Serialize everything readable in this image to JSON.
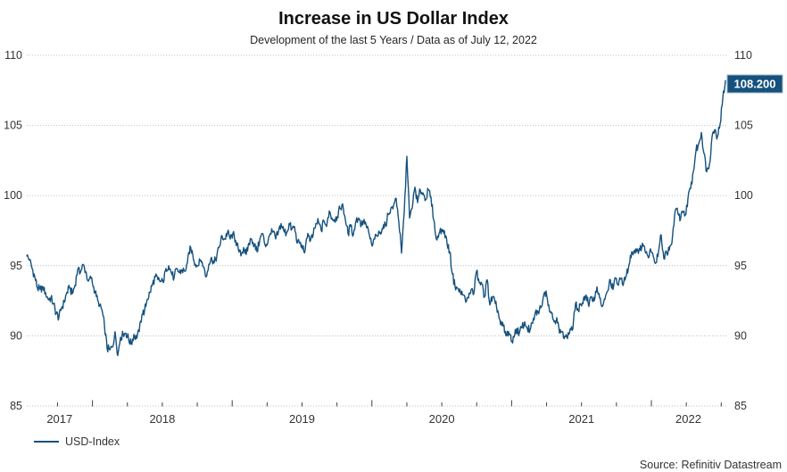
{
  "title": "Increase in US Dollar Index",
  "subtitle": "Development of the last 5 Years / Data as of July 12, 2022",
  "source": "Source: Refinitiv Datastream",
  "legend": {
    "usd_index_label": "USD-Index"
  },
  "end_label": "108.200",
  "colors": {
    "line": "#15517D",
    "end_label_bg": "#15517D",
    "end_label_border": "#9FB3C8",
    "end_label_text": "#FFFFFF",
    "grid": "#BFBFBF",
    "tick": "#404040",
    "axis_text": "#333333",
    "title_text": "#111111",
    "subtitle_text": "#262626",
    "source_text": "#333333",
    "background": "#FFFFFF"
  },
  "chart_data": {
    "type": "line",
    "title": "Increase in US Dollar Index",
    "subtitle": "Development of the last 5 Years / Data as of July 12, 2022",
    "source": "Source: Refinitiv Datastream",
    "ylim": [
      85,
      110
    ],
    "yticks": [
      85,
      90,
      95,
      100,
      105,
      110
    ],
    "y_labels_both_sides": true,
    "x_years": [
      2017,
      2018,
      2019,
      2020,
      2021,
      2022
    ],
    "x_start": 2017.53,
    "x_end": 2022.53,
    "x_minor_tick_interval": 0.25,
    "grid": "horizontal-dotted",
    "legend_position": "bottom-left",
    "annotation": {
      "text": "108.200",
      "value": 108.2,
      "at": "last-point"
    },
    "series": [
      {
        "name": "USD-Index",
        "interval": "weekly",
        "values": [
          95.7,
          95.4,
          94.8,
          94.2,
          93.4,
          93.3,
          93.5,
          93.1,
          92.6,
          92.7,
          92.3,
          91.6,
          91.3,
          92.0,
          92.4,
          93.1,
          93.4,
          93.0,
          93.6,
          94.7,
          94.5,
          95.1,
          94.6,
          93.9,
          94.1,
          93.5,
          92.8,
          92.1,
          91.9,
          90.8,
          89.1,
          89.0,
          89.2,
          90.3,
          88.6,
          89.9,
          90.1,
          90.2,
          89.8,
          89.4,
          90.1,
          89.8,
          90.3,
          91.5,
          91.8,
          92.6,
          93.1,
          93.7,
          94.2,
          94.0,
          93.9,
          93.8,
          94.8,
          95.0,
          94.5,
          94.1,
          94.8,
          94.5,
          94.7,
          94.6,
          95.2,
          96.4,
          95.8,
          95.1,
          95.0,
          95.4,
          94.9,
          94.2,
          95.1,
          95.6,
          95.2,
          95.7,
          96.4,
          97.1,
          96.9,
          97.4,
          96.9,
          97.3,
          96.8,
          96.2,
          95.7,
          96.3,
          95.8,
          96.6,
          96.9,
          96.5,
          96.0,
          96.8,
          97.3,
          96.5,
          96.6,
          97.3,
          97.4,
          96.9,
          97.4,
          98.0,
          97.5,
          97.3,
          98.0,
          97.6,
          97.8,
          96.6,
          96.6,
          96.2,
          96.1,
          97.3,
          96.8,
          97.2,
          98.0,
          98.1,
          97.5,
          98.2,
          97.8,
          98.9,
          98.4,
          98.3,
          98.5,
          99.1,
          99.4,
          98.3,
          97.3,
          97.8,
          97.2,
          98.2,
          98.4,
          97.9,
          98.3,
          97.7,
          97.2,
          96.4,
          96.9,
          97.1,
          97.4,
          97.6,
          97.9,
          98.7,
          99.1,
          99.3,
          99.8,
          98.1,
          95.9,
          98.8,
          102.8,
          98.4,
          99.1,
          100.6,
          99.5,
          100.4,
          100.2,
          99.7,
          100.4,
          99.9,
          98.3,
          96.9,
          97.3,
          97.6,
          97.5,
          96.6,
          96.0,
          94.4,
          93.5,
          93.4,
          93.1,
          92.9,
          92.4,
          92.7,
          93.3,
          93.0,
          94.6,
          93.8,
          93.7,
          92.8,
          94.0,
          92.2,
          92.8,
          92.3,
          91.8,
          90.8,
          90.7,
          90.0,
          90.3,
          89.6,
          89.9,
          90.5,
          90.2,
          90.6,
          91.0,
          90.5,
          90.4,
          90.9,
          91.7,
          91.7,
          92.0,
          92.8,
          93.2,
          92.2,
          91.6,
          91.0,
          91.3,
          90.2,
          90.3,
          90.0,
          89.8,
          90.5,
          90.5,
          92.3,
          91.8,
          92.2,
          92.7,
          92.9,
          92.1,
          92.8,
          92.5,
          93.5,
          92.7,
          92.1,
          92.6,
          93.2,
          94.0,
          93.3,
          94.1,
          93.6,
          94.1,
          93.8,
          94.3,
          95.1,
          96.0,
          96.1,
          96.2,
          96.1,
          96.6,
          96.0,
          95.7,
          96.2,
          95.7,
          95.2,
          96.0,
          97.2,
          95.5,
          96.0,
          96.1,
          96.6,
          98.6,
          99.1,
          98.2,
          98.8,
          98.6,
          99.8,
          100.5,
          101.7,
          103.2,
          103.7,
          104.5,
          103.0,
          101.7,
          102.2,
          104.2,
          104.7,
          104.2,
          105.1,
          106.9,
          108.2
        ]
      }
    ]
  }
}
